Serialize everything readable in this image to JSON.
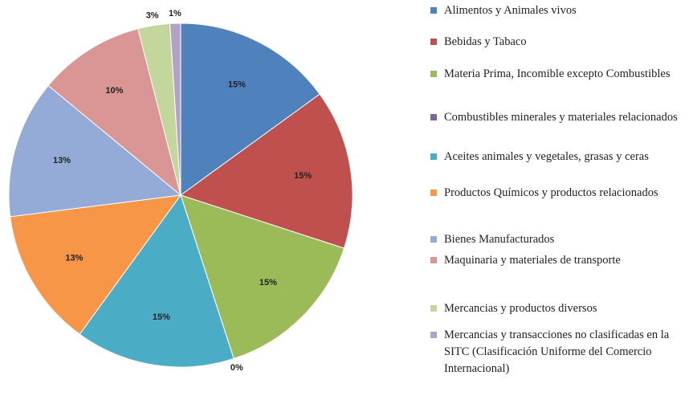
{
  "chart_data": {
    "type": "pie",
    "categories": [
      "Alimentos y Animales vivos",
      "Bebidas y Tabaco",
      "Materia Prima, Incomible excepto Combustibles",
      "Combustibles minerales y materiales relacionados",
      "Aceites animales y vegetales, grasas y ceras",
      "Productos Químicos y productos relacionados",
      "Bienes Manufacturados",
      "Maquinaria y materiales de transporte",
      "Mercancias y productos diversos",
      "Mercancias y transacciones no clasificadas en la SITC (Clasificación Uniforme del Comercio Internacional)"
    ],
    "values": [
      15,
      15,
      15,
      0,
      15,
      13,
      13,
      10,
      3,
      1
    ],
    "value_labels": [
      "15%",
      "15%",
      "15%",
      "0%",
      "15%",
      "13%",
      "13%",
      "10%",
      "3%",
      "1%"
    ],
    "colors": [
      "#4f81bd",
      "#c0504d",
      "#9bbb59",
      "#8064a2",
      "#4bacc6",
      "#f79646",
      "#95abd7",
      "#d99694",
      "#c3d69b",
      "#b3a2c7"
    ],
    "legend": "right"
  }
}
